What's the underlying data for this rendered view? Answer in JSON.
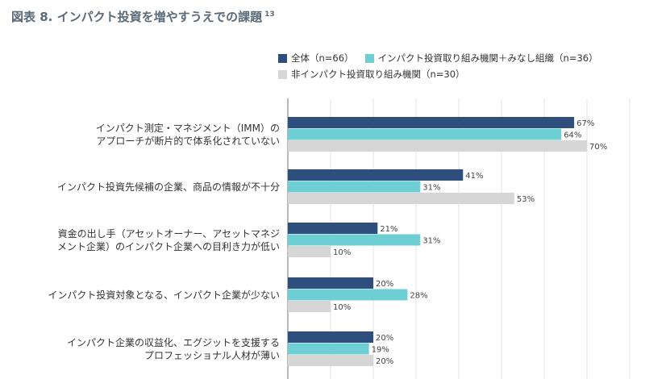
{
  "title": "図表 8. インパクト投資を増やすうえでの課題",
  "footnote": "13",
  "colors": {
    "s0": "#2e4e7e",
    "s1": "#6dcfd3",
    "s2": "#d6d6d6",
    "grid": "#e3e3e3",
    "axis": "#888888"
  },
  "chart_data": {
    "type": "bar",
    "orientation": "horizontal",
    "xlim": [
      0,
      100
    ],
    "grid": true,
    "legend_position": "top",
    "categories": [
      [
        "インパクト測定・マネジメント（IMM）の",
        "アプローチが断片的で体系化されていない"
      ],
      [
        "インパクト投資先候補の企業、商品の情報が不十分"
      ],
      [
        "資金の出し手（アセットオーナー、アセットマネジ",
        "メント企業）のインパクト企業への目利き力が低い"
      ],
      [
        "インパクト投資対象となる、インパクト企業が少ない"
      ],
      [
        "インパクト企業の収益化、エグジットを支援する",
        "プロフェッショナル人材が薄い"
      ]
    ],
    "series": [
      {
        "name": "全体（n=66）",
        "values": [
          67,
          41,
          21,
          20,
          20
        ]
      },
      {
        "name": "インパクト投資取り組み機関＋みなし組織（n=36）",
        "values": [
          64,
          31,
          31,
          28,
          19
        ]
      },
      {
        "name": "非インパクト投資取り組み機関（n=30）",
        "values": [
          70,
          53,
          10,
          10,
          20
        ]
      }
    ]
  }
}
